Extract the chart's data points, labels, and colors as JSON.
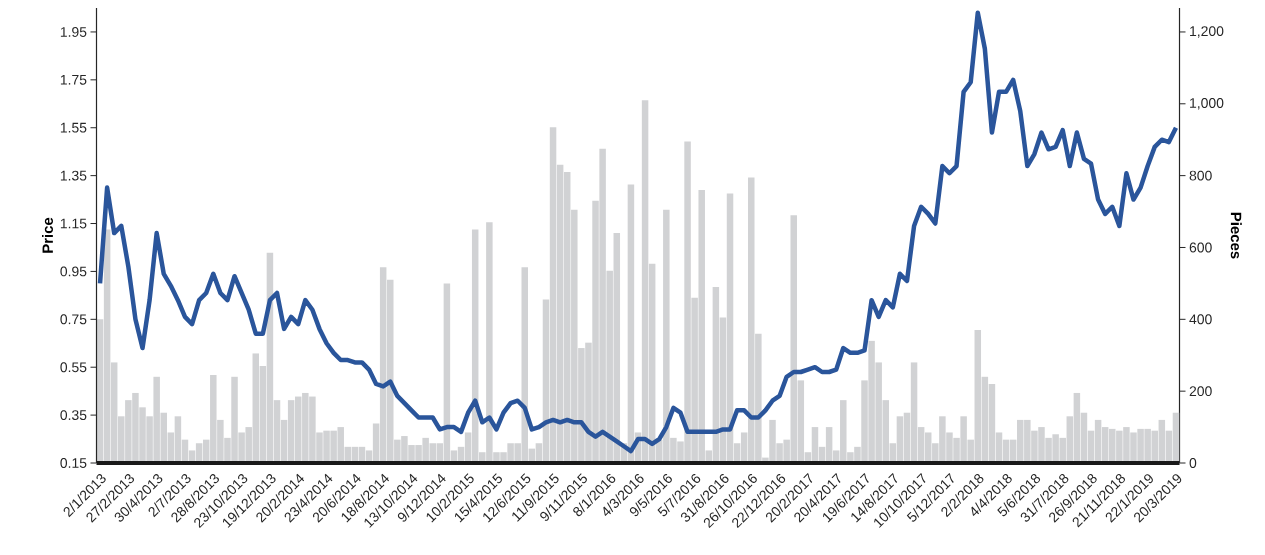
{
  "chart_data": {
    "type": "bar",
    "xlabel": null,
    "ylabel": "Price",
    "y2label": "Pieces",
    "categories": [
      "2/1/2013",
      null,
      null,
      null,
      "27/2/2013",
      null,
      null,
      null,
      "30/4/2013",
      null,
      null,
      null,
      "2/7/2013",
      null,
      null,
      null,
      "28/8/2013",
      null,
      null,
      null,
      "23/10/2013",
      null,
      null,
      null,
      "19/12/2013",
      null,
      null,
      null,
      "20/2/2014",
      null,
      null,
      null,
      "23/4/2014",
      null,
      null,
      null,
      "20/6/2014",
      null,
      null,
      null,
      "18/8/2014",
      null,
      null,
      null,
      "13/10/2014",
      null,
      null,
      null,
      "9/12/2014",
      null,
      null,
      null,
      "10/2/2015",
      null,
      null,
      null,
      "15/4/2015",
      null,
      null,
      null,
      "12/6/2015",
      null,
      null,
      null,
      "11/9/2015",
      null,
      null,
      null,
      "9/11/2015",
      null,
      null,
      null,
      "8/1/2016",
      null,
      null,
      null,
      "4/3/2016",
      null,
      null,
      null,
      "9/5/2016",
      null,
      null,
      null,
      "5/7/2016",
      null,
      null,
      null,
      "31/8/2016",
      null,
      null,
      null,
      "26/10/2016",
      null,
      null,
      null,
      "22/12/2016",
      null,
      null,
      null,
      "20/2/2017",
      null,
      null,
      null,
      "20/4/2017",
      null,
      null,
      null,
      "19/6/2017",
      null,
      null,
      null,
      "14/8/2017",
      null,
      null,
      null,
      "10/10/2017",
      null,
      null,
      null,
      "5/12/2017",
      null,
      null,
      null,
      "2/2/2018",
      null,
      null,
      null,
      "4/4/2018",
      null,
      null,
      null,
      "5/6/2018",
      null,
      null,
      null,
      "31/7/2018",
      null,
      null,
      null,
      "26/9/2018",
      null,
      null,
      null,
      "21/11/2018",
      null,
      null,
      null,
      "22/1/2019",
      null,
      null,
      null,
      "20/3/2019"
    ],
    "series": [
      {
        "axis": "y2",
        "color": "#d1d2d4",
        "values": [
          400,
          650,
          280,
          130,
          175,
          195,
          155,
          130,
          240,
          140,
          85,
          130,
          65,
          35,
          55,
          65,
          245,
          120,
          70,
          240,
          85,
          100,
          305,
          270,
          585,
          175,
          120,
          175,
          185,
          195,
          185,
          85,
          90,
          90,
          100,
          45,
          45,
          45,
          35,
          110,
          545,
          510,
          65,
          75,
          50,
          50,
          70,
          55,
          55,
          500,
          35,
          45,
          85,
          650,
          30,
          670,
          30,
          30,
          55,
          55,
          545,
          40,
          55,
          455,
          935,
          830,
          810,
          705,
          320,
          335,
          730,
          875,
          535,
          640,
          55,
          775,
          85,
          1010,
          555,
          65,
          705,
          70,
          60,
          895,
          460,
          760,
          35,
          490,
          405,
          750,
          55,
          85,
          795,
          360,
          15,
          120,
          55,
          65,
          690,
          230,
          30,
          100,
          45,
          100,
          35,
          175,
          30,
          45,
          230,
          340,
          280,
          175,
          55,
          130,
          140,
          280,
          100,
          85,
          55,
          130,
          85,
          70,
          130,
          65,
          370,
          240,
          220,
          85,
          65,
          65,
          120,
          120,
          90,
          100,
          70,
          80,
          70,
          130,
          195,
          140,
          90,
          120,
          100,
          95,
          90,
          100,
          85,
          95,
          95,
          90,
          120,
          90,
          140
        ]
      },
      {
        "type": "line",
        "axis": "y",
        "color": "#2a559b",
        "values": [
          0.9,
          1.3,
          1.11,
          1.14,
          0.97,
          0.75,
          0.63,
          0.83,
          1.11,
          0.94,
          0.89,
          0.83,
          0.76,
          0.73,
          0.83,
          0.86,
          0.94,
          0.86,
          0.83,
          0.93,
          0.86,
          0.79,
          0.69,
          0.69,
          0.83,
          0.86,
          0.71,
          0.76,
          0.73,
          0.83,
          0.79,
          0.71,
          0.65,
          0.61,
          0.58,
          0.58,
          0.57,
          0.57,
          0.54,
          0.48,
          0.47,
          0.49,
          0.43,
          0.4,
          0.37,
          0.34,
          0.34,
          0.34,
          0.29,
          0.3,
          0.3,
          0.28,
          0.36,
          0.41,
          0.32,
          0.34,
          0.29,
          0.36,
          0.4,
          0.41,
          0.38,
          0.29,
          0.3,
          0.32,
          0.33,
          0.32,
          0.33,
          0.32,
          0.32,
          0.28,
          0.26,
          0.28,
          0.26,
          0.24,
          0.22,
          0.2,
          0.25,
          0.25,
          0.23,
          0.25,
          0.3,
          0.38,
          0.36,
          0.28,
          0.28,
          0.28,
          0.28,
          0.28,
          0.29,
          0.29,
          0.37,
          0.37,
          0.34,
          0.34,
          0.37,
          0.41,
          0.43,
          0.51,
          0.53,
          0.53,
          0.54,
          0.55,
          0.53,
          0.53,
          0.54,
          0.63,
          0.61,
          0.61,
          0.62,
          0.83,
          0.76,
          0.83,
          0.8,
          0.94,
          0.91,
          1.14,
          1.22,
          1.19,
          1.15,
          1.39,
          1.36,
          1.39,
          1.7,
          1.74,
          2.03,
          1.88,
          1.53,
          1.7,
          1.7,
          1.75,
          1.62,
          1.39,
          1.44,
          1.53,
          1.46,
          1.47,
          1.54,
          1.39,
          1.53,
          1.42,
          1.4,
          1.25,
          1.19,
          1.22,
          1.14,
          1.36,
          1.25,
          1.3,
          1.39,
          1.47,
          1.5,
          1.49,
          1.55
        ]
      }
    ],
    "ylim": [
      0.15,
      2.05
    ],
    "yticks": [
      0.15,
      0.35,
      0.55,
      0.75,
      0.95,
      1.15,
      1.35,
      1.55,
      1.75,
      1.95
    ],
    "y2lim": [
      0,
      1266.7
    ],
    "y2ticks": [
      0,
      200,
      400,
      600,
      800,
      {
        "value": 1000,
        "label": "1,000"
      },
      {
        "value": 1200,
        "label": "1,200"
      }
    ],
    "marker": "none"
  }
}
